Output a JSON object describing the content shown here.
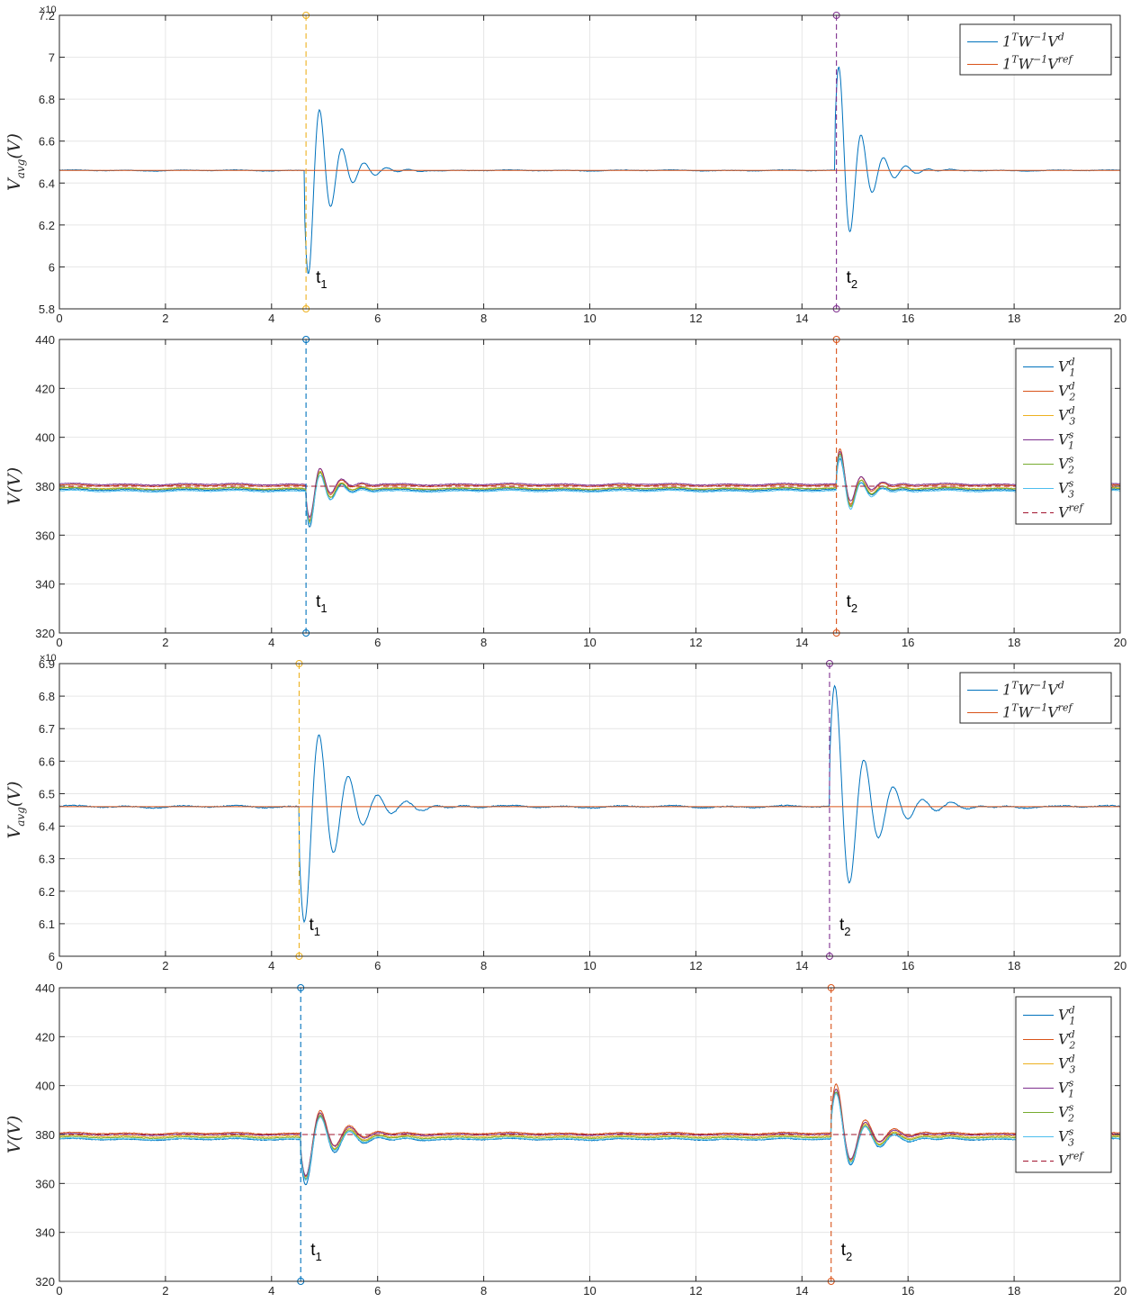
{
  "chart_data": [
    {
      "type": "line",
      "ylabel": "V_avg(V)",
      "ylabel_parts": {
        "main": "V",
        "sub": "avg",
        "tail": "(V)"
      },
      "exponent_label": "×10",
      "xlim": [
        0,
        20
      ],
      "ylim": [
        5.8,
        7.2
      ],
      "xticks": [
        "0",
        "2",
        "4",
        "6",
        "8",
        "10",
        "12",
        "14",
        "16",
        "18",
        "20"
      ],
      "yticks": [
        "5.8",
        "6",
        "6.2",
        "6.4",
        "6.6",
        "6.8",
        "7",
        "7.2"
      ],
      "grid": true,
      "legend_placement": "top-right",
      "series": [
        {
          "name": "1^T W^-1 V^d",
          "label": {
            "a": "1",
            "sup1": "T",
            "b": "W",
            "sup2": "−1",
            "c": "V",
            "sup3": "d"
          },
          "color": "#0072BD",
          "style": "solid",
          "base": 6.46,
          "noise": 0.003,
          "events": [
            {
              "t": 4.62,
              "amp": 0.6,
              "decay": 0.4,
              "period": 0.42,
              "phase": 1
            },
            {
              "t": 14.62,
              "amp": 0.6,
              "decay": 0.4,
              "period": 0.42,
              "phase": -1
            }
          ]
        },
        {
          "name": "1^T W^-1 V^ref",
          "label": {
            "a": "1",
            "sup1": "T",
            "b": "W",
            "sup2": "−1",
            "c": "V",
            "sup3": "ref"
          },
          "color": "#D95319",
          "style": "solid",
          "base": 6.46,
          "noise": 0,
          "events": []
        }
      ],
      "markers": [
        {
          "x": 4.65,
          "color": "#EDB120",
          "label": "t",
          "sub": "1"
        },
        {
          "x": 14.65,
          "color": "#7E2F8E",
          "label": "t",
          "sub": "2"
        }
      ]
    },
    {
      "type": "line",
      "ylabel": "V(V)",
      "ylabel_parts": {
        "main": "V",
        "sub": "",
        "tail": "(V)"
      },
      "exponent_label": "",
      "xlim": [
        0,
        20
      ],
      "ylim": [
        320,
        440
      ],
      "xticks": [
        "0",
        "2",
        "4",
        "6",
        "8",
        "10",
        "12",
        "14",
        "16",
        "18",
        "20"
      ],
      "yticks": [
        "320",
        "340",
        "360",
        "380",
        "400",
        "420",
        "440"
      ],
      "grid": true,
      "legend_placement": "top-right",
      "series": [
        {
          "name": "V_1^d",
          "label": {
            "a": "V",
            "sub": "1",
            "sup": "d"
          },
          "color": "#0072BD",
          "style": "solid",
          "base": 378.5,
          "noise": 0.4,
          "events": [
            {
              "t": 4.65,
              "amp": 19,
              "decay": 0.3,
              "period": 0.4,
              "phase": 1
            },
            {
              "t": 14.65,
              "amp": 16,
              "decay": 0.3,
              "period": 0.4,
              "phase": -1
            }
          ]
        },
        {
          "name": "V_2^d",
          "label": {
            "a": "V",
            "sub": "2",
            "sup": "d"
          },
          "color": "#D95319",
          "style": "solid",
          "base": 380.3,
          "noise": 0.4,
          "events": [
            {
              "t": 4.65,
              "amp": 18,
              "decay": 0.3,
              "period": 0.4,
              "phase": 1
            },
            {
              "t": 14.65,
              "amp": 19,
              "decay": 0.3,
              "period": 0.4,
              "phase": -1
            }
          ]
        },
        {
          "name": "V_3^d",
          "label": {
            "a": "V",
            "sub": "3",
            "sup": "d"
          },
          "color": "#EDB120",
          "style": "solid",
          "base": 379.2,
          "noise": 0.4,
          "events": [
            {
              "t": 4.65,
              "amp": 18,
              "decay": 0.3,
              "period": 0.4,
              "phase": 1
            },
            {
              "t": 14.65,
              "amp": 18,
              "decay": 0.3,
              "period": 0.4,
              "phase": -1
            }
          ]
        },
        {
          "name": "V_1^s",
          "label": {
            "a": "V",
            "sub": "1",
            "sup": "s"
          },
          "color": "#7E2F8E",
          "style": "solid",
          "base": 380.8,
          "noise": 0.4,
          "events": [
            {
              "t": 4.65,
              "amp": 17,
              "decay": 0.3,
              "period": 0.4,
              "phase": 1
            },
            {
              "t": 14.65,
              "amp": 17,
              "decay": 0.3,
              "period": 0.4,
              "phase": -1
            }
          ]
        },
        {
          "name": "V_2^s",
          "label": {
            "a": "V",
            "sub": "2",
            "sup": "s"
          },
          "color": "#77AC30",
          "style": "solid",
          "base": 379.0,
          "noise": 0.4,
          "events": [
            {
              "t": 4.65,
              "amp": 17,
              "decay": 0.3,
              "period": 0.4,
              "phase": 1
            },
            {
              "t": 14.65,
              "amp": 18,
              "decay": 0.3,
              "period": 0.4,
              "phase": -1
            }
          ]
        },
        {
          "name": "V_3^s",
          "label": {
            "a": "V",
            "sub": "3",
            "sup": "s"
          },
          "color": "#4DBEEE",
          "style": "solid",
          "base": 378.0,
          "noise": 0.4,
          "events": [
            {
              "t": 4.65,
              "amp": 17,
              "decay": 0.3,
              "period": 0.4,
              "phase": 1
            },
            {
              "t": 14.65,
              "amp": 18,
              "decay": 0.3,
              "period": 0.4,
              "phase": -1
            }
          ]
        },
        {
          "name": "V^ref",
          "label": {
            "a": "V",
            "sub": "",
            "sup": "ref"
          },
          "color": "#A2142F",
          "style": "dashed",
          "base": 380,
          "noise": 0,
          "events": []
        }
      ],
      "markers": [
        {
          "x": 4.65,
          "color": "#0072BD",
          "label": "t",
          "sub": "1"
        },
        {
          "x": 14.65,
          "color": "#D95319",
          "label": "t",
          "sub": "2"
        }
      ]
    },
    {
      "type": "line",
      "ylabel": "V_avg(V)",
      "ylabel_parts": {
        "main": "V",
        "sub": "avg",
        "tail": "(V)"
      },
      "exponent_label": "×10",
      "xlim": [
        0,
        20
      ],
      "ylim": [
        6.0,
        6.9
      ],
      "xticks": [
        "0",
        "2",
        "4",
        "6",
        "8",
        "10",
        "12",
        "14",
        "16",
        "18",
        "20"
      ],
      "yticks": [
        "6",
        "6.1",
        "6.2",
        "6.3",
        "6.4",
        "6.5",
        "6.6",
        "6.7",
        "6.8",
        "6.9"
      ],
      "grid": true,
      "legend_placement": "top-right",
      "series": [
        {
          "name": "1^T W^-1 V^d",
          "label": {
            "a": "1",
            "sup1": "T",
            "b": "W",
            "sup2": "−1",
            "c": "V",
            "sup3": "d"
          },
          "color": "#0072BD",
          "style": "solid",
          "base": 6.46,
          "noise": 0.004,
          "events": [
            {
              "t": 4.52,
              "amp": 0.42,
              "decay": 0.6,
              "period": 0.55,
              "phase": 1
            },
            {
              "t": 14.52,
              "amp": 0.44,
              "decay": 0.6,
              "period": 0.55,
              "phase": -1
            }
          ]
        },
        {
          "name": "1^T W^-1 V^ref",
          "label": {
            "a": "1",
            "sup1": "T",
            "b": "W",
            "sup2": "−1",
            "c": "V",
            "sup3": "ref"
          },
          "color": "#D95319",
          "style": "solid",
          "base": 6.46,
          "noise": 0,
          "events": []
        }
      ],
      "markers": [
        {
          "x": 4.52,
          "color": "#EDB120",
          "label": "t",
          "sub": "1"
        },
        {
          "x": 14.52,
          "color": "#7E2F8E",
          "label": "t",
          "sub": "2"
        }
      ]
    },
    {
      "type": "line",
      "ylabel": "V(V)",
      "ylabel_parts": {
        "main": "V",
        "sub": "",
        "tail": "(V)"
      },
      "exponent_label": "",
      "xlim": [
        0,
        20
      ],
      "ylim": [
        320,
        440
      ],
      "xticks": [
        "0",
        "2",
        "4",
        "6",
        "8",
        "10",
        "12",
        "14",
        "16",
        "18",
        "20"
      ],
      "yticks": [
        "320",
        "340",
        "360",
        "380",
        "400",
        "420",
        "440"
      ],
      "grid": true,
      "legend_placement": "top-right",
      "series": [
        {
          "name": "V_1^d",
          "label": {
            "a": "V",
            "sub": "1",
            "sup": "d"
          },
          "color": "#0072BD",
          "style": "solid",
          "base": 378.0,
          "noise": 0.4,
          "events": [
            {
              "t": 4.55,
              "amp": 23,
              "decay": 0.45,
              "period": 0.55,
              "phase": 1
            },
            {
              "t": 14.55,
              "amp": 24,
              "decay": 0.45,
              "period": 0.55,
              "phase": -1
            }
          ]
        },
        {
          "name": "V_2^d",
          "label": {
            "a": "V",
            "sub": "2",
            "sup": "d"
          },
          "color": "#D95319",
          "style": "solid",
          "base": 380.5,
          "noise": 0.4,
          "events": [
            {
              "t": 4.55,
              "amp": 22,
              "decay": 0.45,
              "period": 0.55,
              "phase": 1
            },
            {
              "t": 14.55,
              "amp": 25,
              "decay": 0.45,
              "period": 0.55,
              "phase": -1
            }
          ]
        },
        {
          "name": "V_3^d",
          "label": {
            "a": "V",
            "sub": "3",
            "sup": "d"
          },
          "color": "#EDB120",
          "style": "solid",
          "base": 379.3,
          "noise": 0.4,
          "events": [
            {
              "t": 4.55,
              "amp": 22,
              "decay": 0.45,
              "period": 0.55,
              "phase": 1
            },
            {
              "t": 14.55,
              "amp": 24,
              "decay": 0.45,
              "period": 0.55,
              "phase": -1
            }
          ]
        },
        {
          "name": "V_1^s",
          "label": {
            "a": "V",
            "sub": "1",
            "sup": "s"
          },
          "color": "#7E2F8E",
          "style": "solid",
          "base": 380.0,
          "noise": 0.4,
          "events": [
            {
              "t": 4.55,
              "amp": 21,
              "decay": 0.45,
              "period": 0.55,
              "phase": 1
            },
            {
              "t": 14.55,
              "amp": 23,
              "decay": 0.45,
              "period": 0.55,
              "phase": -1
            }
          ]
        },
        {
          "name": "V_2^s",
          "label": {
            "a": "V",
            "sub": "2",
            "sup": "s"
          },
          "color": "#77AC30",
          "style": "solid",
          "base": 378.8,
          "noise": 0.4,
          "events": [
            {
              "t": 4.55,
              "amp": 21,
              "decay": 0.45,
              "period": 0.55,
              "phase": 1
            },
            {
              "t": 14.55,
              "amp": 23,
              "decay": 0.45,
              "period": 0.55,
              "phase": -1
            }
          ]
        },
        {
          "name": "V_3^s",
          "label": {
            "a": "V",
            "sub": "3",
            "sup": "s"
          },
          "color": "#4DBEEE",
          "style": "solid",
          "base": 378.2,
          "noise": 0.4,
          "events": [
            {
              "t": 4.55,
              "amp": 21,
              "decay": 0.45,
              "period": 0.55,
              "phase": 1
            },
            {
              "t": 14.55,
              "amp": 23,
              "decay": 0.45,
              "period": 0.55,
              "phase": -1
            }
          ]
        },
        {
          "name": "V^ref",
          "label": {
            "a": "V",
            "sub": "",
            "sup": "ref"
          },
          "color": "#A2142F",
          "style": "dashed",
          "base": 380,
          "noise": 0,
          "events": []
        }
      ],
      "markers": [
        {
          "x": 4.55,
          "color": "#0072BD",
          "label": "t",
          "sub": "1"
        },
        {
          "x": 14.55,
          "color": "#D95319",
          "label": "t",
          "sub": "2"
        }
      ]
    }
  ]
}
